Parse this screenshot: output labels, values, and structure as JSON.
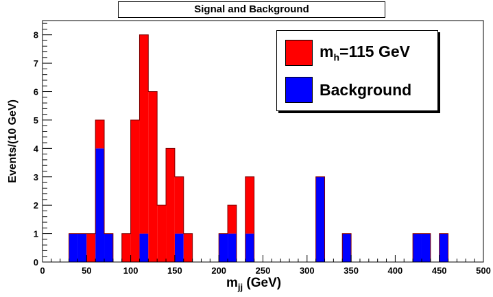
{
  "chart_data": {
    "type": "bar",
    "title": "Signal and Background",
    "xlabel_main": "m",
    "xlabel_sub": "jj",
    "xlabel_unit": " (GeV)",
    "ylabel": "Events/(10 GeV)",
    "xlim": [
      0,
      500
    ],
    "ylim": [
      0,
      8.5
    ],
    "bin_width": 10,
    "stacked": true,
    "x_ticks": [
      0,
      50,
      100,
      150,
      200,
      250,
      300,
      350,
      400,
      450,
      500
    ],
    "y_ticks": [
      0,
      1,
      2,
      3,
      4,
      5,
      6,
      7,
      8
    ],
    "legend_position": "top-right",
    "series": [
      {
        "name": "m_h=115 GeV",
        "color": "#ff0000",
        "bins": [
          {
            "x": 50,
            "value": 1
          },
          {
            "x": 60,
            "value": 1
          },
          {
            "x": 90,
            "value": 1
          },
          {
            "x": 100,
            "value": 5
          },
          {
            "x": 110,
            "value": 7
          },
          {
            "x": 120,
            "value": 6
          },
          {
            "x": 130,
            "value": 2
          },
          {
            "x": 140,
            "value": 4
          },
          {
            "x": 150,
            "value": 2
          },
          {
            "x": 160,
            "value": 1
          },
          {
            "x": 210,
            "value": 1
          },
          {
            "x": 230,
            "value": 2
          }
        ]
      },
      {
        "name": "Background",
        "color": "#0000ff",
        "bins": [
          {
            "x": 30,
            "value": 1
          },
          {
            "x": 40,
            "value": 1
          },
          {
            "x": 60,
            "value": 4
          },
          {
            "x": 70,
            "value": 1
          },
          {
            "x": 110,
            "value": 1
          },
          {
            "x": 150,
            "value": 1
          },
          {
            "x": 200,
            "value": 1
          },
          {
            "x": 210,
            "value": 1
          },
          {
            "x": 230,
            "value": 1
          },
          {
            "x": 310,
            "value": 3
          },
          {
            "x": 340,
            "value": 1
          },
          {
            "x": 420,
            "value": 1
          },
          {
            "x": 430,
            "value": 1
          },
          {
            "x": 450,
            "value": 1
          }
        ]
      }
    ]
  },
  "legend": {
    "signal": {
      "label_main": "m",
      "label_sub": "h",
      "label_rest": "=115 GeV",
      "color": "#ff0000"
    },
    "background": {
      "label": "Background",
      "color": "#0000ff"
    }
  }
}
